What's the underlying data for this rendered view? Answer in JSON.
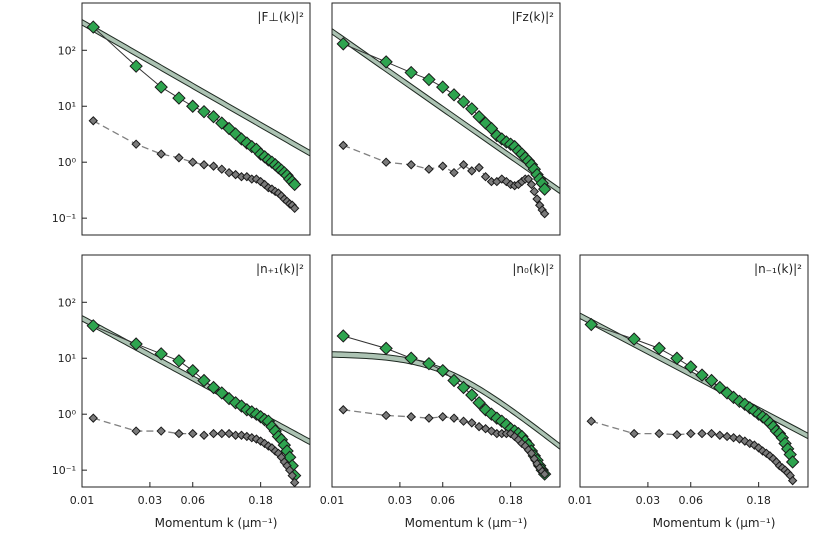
{
  "figure": {
    "x_axis_label": "Momentum k (µm⁻¹)",
    "x_ticks": [
      "0.01",
      "0.03",
      "0.06",
      "0.18"
    ],
    "y_ticks": [
      "10²",
      "10¹",
      "10⁰",
      "10⁻¹"
    ]
  },
  "chart_data": [
    {
      "type": "line",
      "panel_label": "|F⊥(k)|²",
      "x_scale": "log",
      "y_scale": "log",
      "xlim": [
        0.01,
        0.4
      ],
      "ylim": [
        0.05,
        700
      ],
      "show_x_axis": false,
      "show_y_ticks": true,
      "fit_line": {
        "a": 0.38,
        "b": 1.46,
        "band": 1.12
      },
      "series": [
        {
          "style": "green-diamond",
          "x": [
            0.012,
            0.024,
            0.036,
            0.048,
            0.06,
            0.072,
            0.084,
            0.096,
            0.108,
            0.12,
            0.132,
            0.144,
            0.156,
            0.168,
            0.18,
            0.192,
            0.204,
            0.216,
            0.228,
            0.24,
            0.252,
            0.264,
            0.276,
            0.288,
            0.3,
            0.312
          ],
          "y": [
            260,
            52,
            22,
            14,
            10,
            8,
            6.5,
            5,
            4,
            3.2,
            2.6,
            2.2,
            1.9,
            1.7,
            1.4,
            1.25,
            1.1,
            1.0,
            0.9,
            0.8,
            0.72,
            0.65,
            0.58,
            0.5,
            0.45,
            0.4
          ]
        },
        {
          "style": "gray-diamond",
          "x": [
            0.012,
            0.024,
            0.036,
            0.048,
            0.06,
            0.072,
            0.084,
            0.096,
            0.108,
            0.12,
            0.132,
            0.144,
            0.156,
            0.168,
            0.18,
            0.192,
            0.204,
            0.216,
            0.228,
            0.24,
            0.252,
            0.264,
            0.276,
            0.288,
            0.3,
            0.312
          ],
          "y": [
            5.5,
            2.1,
            1.4,
            1.2,
            1.0,
            0.9,
            0.85,
            0.75,
            0.65,
            0.6,
            0.55,
            0.55,
            0.5,
            0.5,
            0.45,
            0.4,
            0.35,
            0.33,
            0.3,
            0.28,
            0.25,
            0.22,
            0.2,
            0.18,
            0.17,
            0.15
          ]
        }
      ]
    },
    {
      "type": "line",
      "panel_label": "|Fz(k)|²",
      "x_scale": "log",
      "y_scale": "log",
      "xlim": [
        0.01,
        0.4
      ],
      "ylim": [
        0.05,
        700
      ],
      "show_x_axis": false,
      "show_y_ticks": false,
      "fit_line": {
        "a": 0.06,
        "b": 1.78,
        "band": 1.12
      },
      "series": [
        {
          "style": "green-diamond",
          "x": [
            0.012,
            0.024,
            0.036,
            0.048,
            0.06,
            0.072,
            0.084,
            0.096,
            0.108,
            0.12,
            0.132,
            0.144,
            0.156,
            0.168,
            0.18,
            0.192,
            0.204,
            0.216,
            0.228,
            0.24,
            0.252,
            0.264,
            0.276,
            0.288,
            0.3,
            0.312
          ],
          "y": [
            130,
            62,
            40,
            30,
            22,
            16,
            12,
            9,
            6.5,
            5,
            4,
            3,
            2.6,
            2.3,
            2.1,
            1.9,
            1.6,
            1.4,
            1.2,
            1.05,
            0.9,
            0.75,
            0.6,
            0.5,
            0.42,
            0.33
          ]
        },
        {
          "style": "gray-diamond",
          "x": [
            0.012,
            0.024,
            0.036,
            0.048,
            0.06,
            0.072,
            0.084,
            0.096,
            0.108,
            0.12,
            0.132,
            0.144,
            0.156,
            0.168,
            0.18,
            0.192,
            0.204,
            0.216,
            0.228,
            0.24,
            0.252,
            0.264,
            0.276,
            0.288,
            0.3,
            0.312
          ],
          "y": [
            2.0,
            1.0,
            0.9,
            0.75,
            0.85,
            0.65,
            0.9,
            0.7,
            0.8,
            0.55,
            0.45,
            0.45,
            0.5,
            0.45,
            0.4,
            0.38,
            0.4,
            0.45,
            0.5,
            0.5,
            0.4,
            0.3,
            0.22,
            0.17,
            0.14,
            0.12
          ]
        }
      ]
    },
    {
      "type": "line",
      "panel_label": "|n₊₁(k)|²",
      "x_scale": "log",
      "y_scale": "log",
      "xlim": [
        0.01,
        0.4
      ],
      "ylim": [
        0.05,
        700
      ],
      "show_x_axis": true,
      "show_y_ticks": true,
      "fit_line": {
        "a": 0.09,
        "b": 1.38,
        "band": 1.12
      },
      "series": [
        {
          "style": "green-diamond",
          "x": [
            0.012,
            0.024,
            0.036,
            0.048,
            0.06,
            0.072,
            0.084,
            0.096,
            0.108,
            0.12,
            0.132,
            0.144,
            0.156,
            0.168,
            0.18,
            0.192,
            0.204,
            0.216,
            0.228,
            0.24,
            0.252,
            0.264,
            0.276,
            0.288,
            0.3,
            0.312
          ],
          "y": [
            38,
            18,
            12,
            9,
            6,
            4,
            3,
            2.4,
            1.9,
            1.6,
            1.4,
            1.2,
            1.1,
            1.0,
            0.9,
            0.8,
            0.75,
            0.6,
            0.5,
            0.4,
            0.35,
            0.28,
            0.22,
            0.17,
            0.12,
            0.08
          ]
        },
        {
          "style": "gray-diamond",
          "x": [
            0.012,
            0.024,
            0.036,
            0.048,
            0.06,
            0.072,
            0.084,
            0.096,
            0.108,
            0.12,
            0.132,
            0.144,
            0.156,
            0.168,
            0.18,
            0.192,
            0.204,
            0.216,
            0.228,
            0.24,
            0.252,
            0.264,
            0.276,
            0.288,
            0.3,
            0.312
          ],
          "y": [
            0.85,
            0.5,
            0.5,
            0.45,
            0.45,
            0.42,
            0.45,
            0.45,
            0.45,
            0.42,
            0.42,
            0.4,
            0.38,
            0.36,
            0.33,
            0.3,
            0.27,
            0.25,
            0.22,
            0.2,
            0.17,
            0.14,
            0.12,
            0.1,
            0.08,
            0.06
          ]
        }
      ]
    },
    {
      "type": "line",
      "panel_label": "|n₀(k)|²",
      "x_scale": "log",
      "y_scale": "log",
      "xlim": [
        0.01,
        0.4
      ],
      "ylim": [
        0.05,
        700
      ],
      "show_x_axis": true,
      "show_y_ticks": false,
      "fit_lorentz": {
        "A": 12,
        "k0": 0.06,
        "band": 1.12
      },
      "series": [
        {
          "style": "green-diamond",
          "x": [
            0.012,
            0.024,
            0.036,
            0.048,
            0.06,
            0.072,
            0.084,
            0.096,
            0.108,
            0.12,
            0.132,
            0.144,
            0.156,
            0.168,
            0.18,
            0.192,
            0.204,
            0.216,
            0.228,
            0.24,
            0.252,
            0.264,
            0.276,
            0.288,
            0.3,
            0.312
          ],
          "y": [
            25,
            15,
            10,
            8,
            6,
            4,
            3,
            2.2,
            1.6,
            1.2,
            1.0,
            0.85,
            0.75,
            0.65,
            0.55,
            0.5,
            0.45,
            0.4,
            0.33,
            0.28,
            0.22,
            0.18,
            0.15,
            0.12,
            0.1,
            0.085
          ]
        },
        {
          "style": "gray-diamond",
          "x": [
            0.012,
            0.024,
            0.036,
            0.048,
            0.06,
            0.072,
            0.084,
            0.096,
            0.108,
            0.12,
            0.132,
            0.144,
            0.156,
            0.168,
            0.18,
            0.192,
            0.204,
            0.216,
            0.228,
            0.24,
            0.252,
            0.264,
            0.276,
            0.288,
            0.3,
            0.312
          ],
          "y": [
            1.2,
            0.95,
            0.9,
            0.85,
            0.9,
            0.85,
            0.75,
            0.7,
            0.6,
            0.55,
            0.5,
            0.45,
            0.45,
            0.45,
            0.45,
            0.4,
            0.35,
            0.3,
            0.27,
            0.23,
            0.2,
            0.16,
            0.13,
            0.11,
            0.095,
            0.085
          ]
        }
      ]
    },
    {
      "type": "line",
      "panel_label": "|n₋₁(k)|²",
      "x_scale": "log",
      "y_scale": "log",
      "xlim": [
        0.01,
        0.4
      ],
      "ylim": [
        0.05,
        700
      ],
      "show_x_axis": true,
      "show_y_ticks": false,
      "fit_line": {
        "a": 0.12,
        "b": 1.34,
        "band": 1.12
      },
      "series": [
        {
          "style": "green-diamond",
          "x": [
            0.012,
            0.024,
            0.036,
            0.048,
            0.06,
            0.072,
            0.084,
            0.096,
            0.108,
            0.12,
            0.132,
            0.144,
            0.156,
            0.168,
            0.18,
            0.192,
            0.204,
            0.216,
            0.228,
            0.24,
            0.252,
            0.264,
            0.276,
            0.288,
            0.3,
            0.312
          ],
          "y": [
            40,
            22,
            15,
            10,
            7,
            5,
            4,
            3,
            2.4,
            2,
            1.7,
            1.5,
            1.3,
            1.15,
            1.0,
            0.9,
            0.8,
            0.7,
            0.6,
            0.5,
            0.45,
            0.38,
            0.3,
            0.24,
            0.19,
            0.14
          ]
        },
        {
          "style": "gray-diamond",
          "x": [
            0.012,
            0.024,
            0.036,
            0.048,
            0.06,
            0.072,
            0.084,
            0.096,
            0.108,
            0.12,
            0.132,
            0.144,
            0.156,
            0.168,
            0.18,
            0.192,
            0.204,
            0.216,
            0.228,
            0.24,
            0.252,
            0.264,
            0.276,
            0.288,
            0.3,
            0.312
          ],
          "y": [
            0.75,
            0.45,
            0.45,
            0.43,
            0.45,
            0.45,
            0.45,
            0.42,
            0.4,
            0.38,
            0.36,
            0.33,
            0.3,
            0.28,
            0.25,
            0.22,
            0.2,
            0.18,
            0.16,
            0.14,
            0.12,
            0.11,
            0.1,
            0.09,
            0.08,
            0.065
          ]
        }
      ]
    }
  ],
  "colors": {
    "green_fill": "#2ea44f",
    "marker_edge": "#1a1a1a",
    "gray_fill": "#7a7a7a",
    "band_fill": "#9db8a6",
    "band_edge": "#1f2a22",
    "dashed_line": "#808080"
  }
}
